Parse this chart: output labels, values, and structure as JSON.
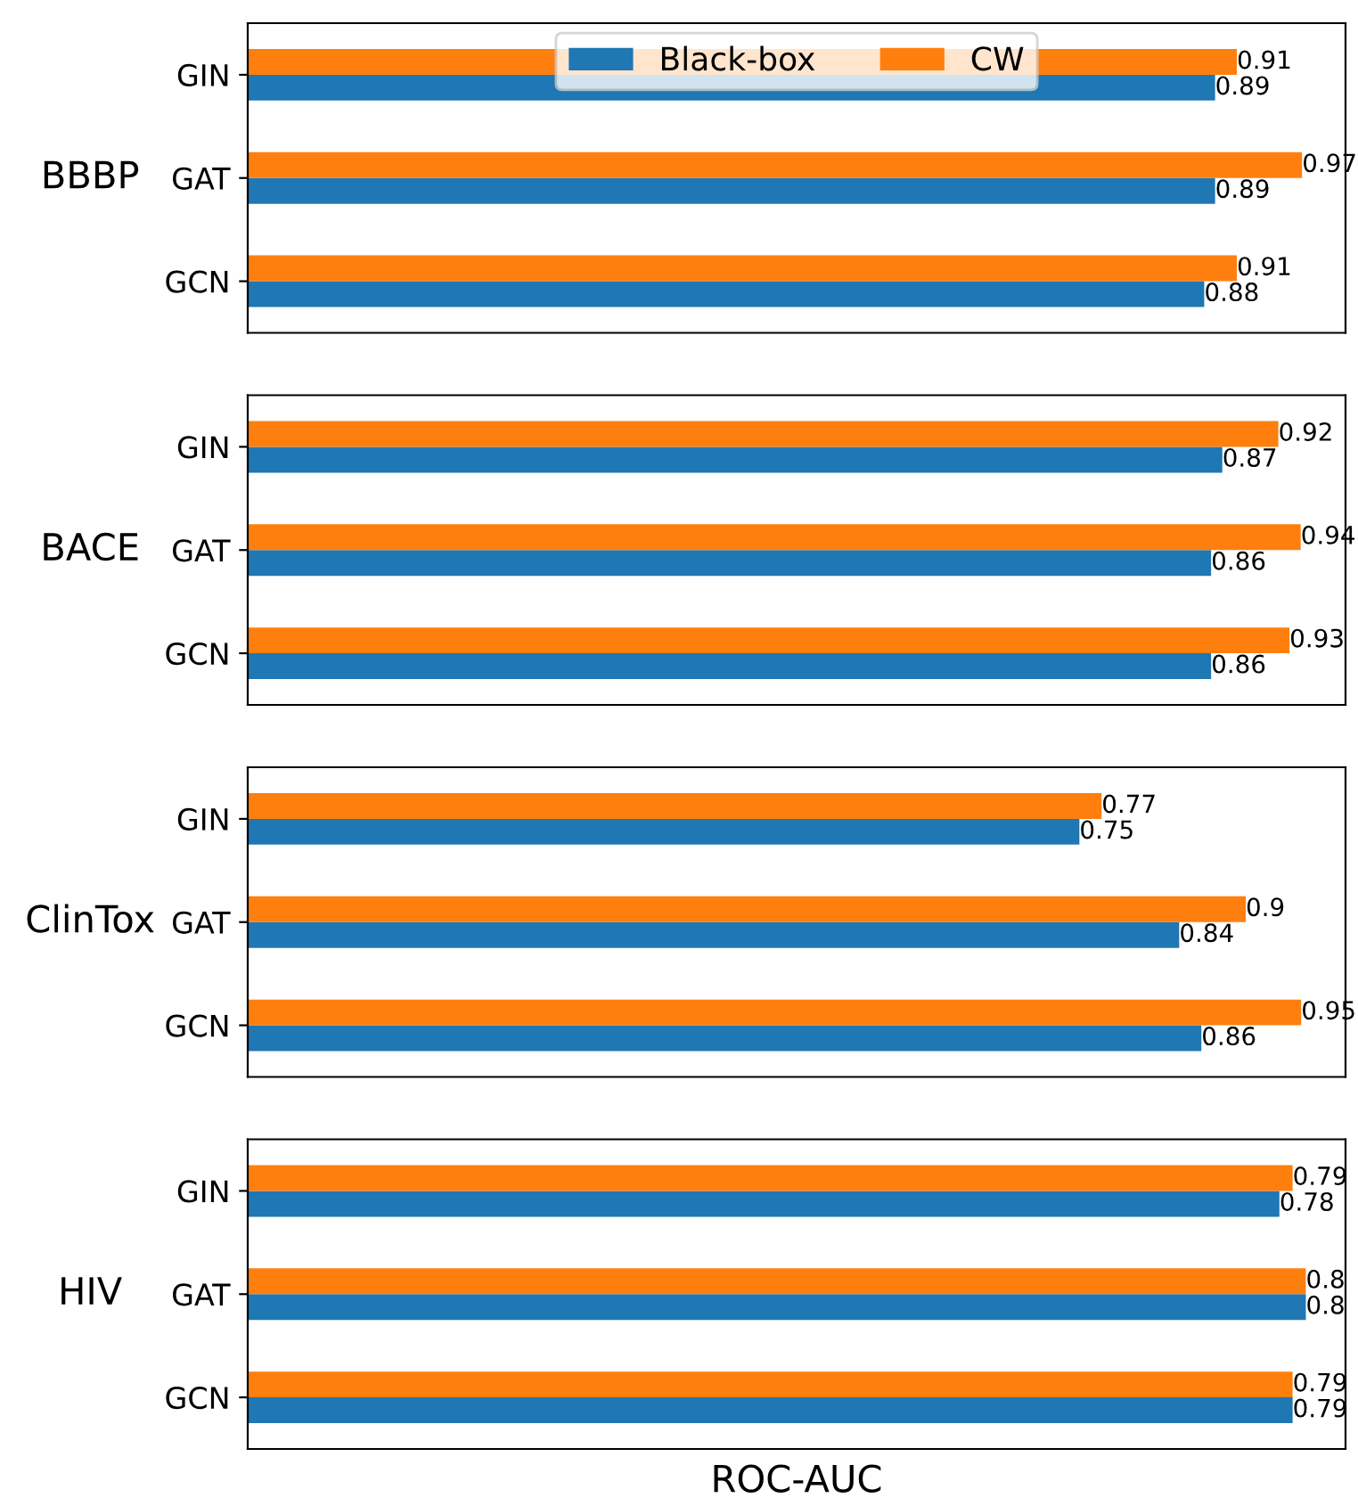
{
  "chart_data": [
    {
      "type": "bar",
      "orientation": "horizontal",
      "ylabel": "BBBP",
      "categories": [
        "GIN",
        "GAT",
        "GCN"
      ],
      "xlim": [
        0,
        1.01
      ],
      "tick_labels": "y",
      "data_labels": true,
      "legend": "top",
      "series": [
        {
          "name": "Black-box",
          "color": "#1f77b4",
          "values": [
            0.89,
            0.89,
            0.88
          ]
        },
        {
          "name": "CW",
          "color": "#ff7f0e",
          "values": [
            0.91,
            0.97,
            0.91
          ]
        }
      ]
    },
    {
      "type": "bar",
      "orientation": "horizontal",
      "ylabel": "BACE",
      "categories": [
        "GIN",
        "GAT",
        "GCN"
      ],
      "xlim": [
        0,
        0.98
      ],
      "tick_labels": "y",
      "data_labels": true,
      "series": [
        {
          "color": "#1f77b4",
          "values": [
            0.87,
            0.86,
            0.86
          ]
        },
        {
          "color": "#ff7f0e",
          "values": [
            0.92,
            0.94,
            0.93
          ]
        }
      ]
    },
    {
      "type": "bar",
      "orientation": "horizontal",
      "ylabel": "ClinTox",
      "categories": [
        "GIN",
        "GAT",
        "GCN"
      ],
      "xlim": [
        0,
        0.99
      ],
      "tick_labels": "y",
      "data_labels": true,
      "series": [
        {
          "color": "#1f77b4",
          "values": [
            0.75,
            0.84,
            0.86
          ]
        },
        {
          "color": "#ff7f0e",
          "values": [
            0.77,
            0.9,
            0.95
          ]
        }
      ]
    },
    {
      "type": "bar",
      "orientation": "horizontal",
      "ylabel": "HIV",
      "xlabel": "ROC-AUC",
      "categories": [
        "GIN",
        "GAT",
        "GCN"
      ],
      "xlim": [
        0,
        0.83
      ],
      "tick_labels": "y",
      "data_labels": true,
      "series": [
        {
          "color": "#1f77b4",
          "values": [
            0.78,
            0.8,
            0.79
          ]
        },
        {
          "color": "#ff7f0e",
          "values": [
            0.79,
            0.8,
            0.79
          ]
        }
      ]
    }
  ]
}
